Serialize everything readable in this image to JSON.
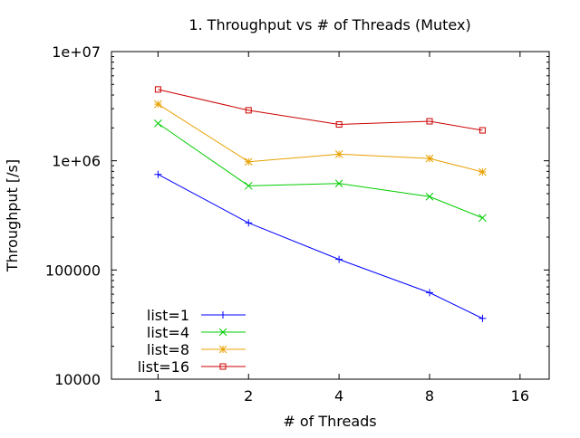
{
  "chart_data": {
    "type": "line",
    "title": "1. Throughput vs # of Threads (Mutex)",
    "xlabel": "# of Threads",
    "ylabel": "Throughput [/s]",
    "x_scale": "log2",
    "y_scale": "log10",
    "xlim": [
      0.7,
      20
    ],
    "ylim": [
      10000,
      10000000
    ],
    "x_ticks": [
      {
        "value": 1,
        "label": "1"
      },
      {
        "value": 2,
        "label": "2"
      },
      {
        "value": 4,
        "label": "4"
      },
      {
        "value": 8,
        "label": "8"
      },
      {
        "value": 16,
        "label": "16"
      }
    ],
    "y_ticks": [
      {
        "value": 10000,
        "label": "10000"
      },
      {
        "value": 100000,
        "label": "100000"
      },
      {
        "value": 1000000,
        "label": "1e+06"
      },
      {
        "value": 10000000,
        "label": "1e+07"
      }
    ],
    "x": [
      1,
      2,
      4,
      8,
      12
    ],
    "series": [
      {
        "name": "list=1",
        "color": "#0000ff",
        "marker": "plus",
        "values": [
          750000,
          270000,
          125000,
          62000,
          36000
        ]
      },
      {
        "name": "list=4",
        "color": "#00cc00",
        "marker": "x",
        "values": [
          2200000,
          590000,
          620000,
          470000,
          300000
        ]
      },
      {
        "name": "list=8",
        "color": "#e8a000",
        "marker": "star",
        "values": [
          3300000,
          980000,
          1150000,
          1050000,
          790000
        ]
      },
      {
        "name": "list=16",
        "color": "#cc0000",
        "marker": "square",
        "values": [
          4500000,
          2900000,
          2150000,
          2300000,
          1900000
        ]
      }
    ],
    "legend_position": "bottom-left",
    "grid": false
  }
}
